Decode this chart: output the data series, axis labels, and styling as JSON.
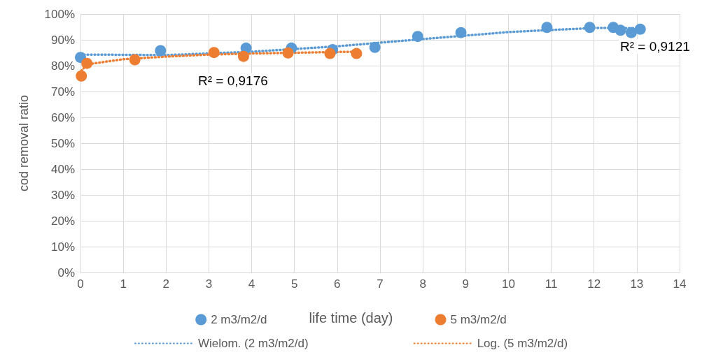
{
  "chart_data": {
    "type": "scatter",
    "xlabel": "life time (day)",
    "ylabel": "cod removal ratio",
    "xlim": [
      0,
      14
    ],
    "xticks": [
      0,
      1,
      2,
      3,
      4,
      5,
      6,
      7,
      8,
      9,
      10,
      11,
      12,
      13,
      14
    ],
    "ylim": [
      0,
      100
    ],
    "yticks": [
      {
        "value": 0,
        "label": "0%"
      },
      {
        "value": 10,
        "label": "10%"
      },
      {
        "value": 20,
        "label": "20%"
      },
      {
        "value": 30,
        "label": "30%"
      },
      {
        "value": 40,
        "label": "40%"
      },
      {
        "value": 50,
        "label": "50%"
      },
      {
        "value": 60,
        "label": "60%"
      },
      {
        "value": 70,
        "label": "70%"
      },
      {
        "value": 80,
        "label": "80%"
      },
      {
        "value": 90,
        "label": "90%"
      },
      {
        "value": 100,
        "label": "100%"
      }
    ],
    "grid": true,
    "legend": "bottom",
    "marker": "circle",
    "series": [
      {
        "name": "2 m3/m2/d",
        "color": "#5b9bd5",
        "x": [
          0,
          1.87,
          3.87,
          4.93,
          5.89,
          6.88,
          7.88,
          8.89,
          10.9,
          11.9,
          12.45,
          12.62,
          12.87,
          13.08
        ],
        "values": [
          83.2,
          85.8,
          86.8,
          86.8,
          86.2,
          87.1,
          91.3,
          92.8,
          94.8,
          94.8,
          94.8,
          93.7,
          92.8,
          94.1
        ]
      },
      {
        "name": "5 m3/m2/d",
        "color": "#ed7d31",
        "x": [
          0.02,
          0.15,
          1.27,
          3.12,
          3.81,
          4.85,
          5.83,
          6.45
        ],
        "values": [
          76.0,
          80.9,
          82.3,
          85.1,
          83.6,
          84.9,
          84.7,
          84.7
        ]
      },
      {
        "name": "Wielom. (2 m3/m2/d)",
        "type": "line",
        "color": "#5b9bd5",
        "marker": "none",
        "line_style": "dotted",
        "x": [
          0,
          2,
          4,
          6,
          8,
          10,
          12,
          13.08
        ],
        "values": [
          84.3,
          84.1,
          85.4,
          87.5,
          90.3,
          93,
          94.6,
          94.5
        ]
      },
      {
        "name": "Log. (5 m3/m2/d)",
        "type": "line",
        "color": "#ed7d31",
        "marker": "none",
        "line_style": "dotted",
        "x": [
          0.02,
          0.15,
          1,
          2,
          3,
          4,
          5,
          6,
          6.45
        ],
        "values": [
          78,
          80.5,
          82.5,
          83.5,
          84.3,
          84.7,
          85,
          85.3,
          85.4
        ]
      }
    ],
    "annotations": [
      "R² = 0,9176",
      "R² = 0,9121"
    ]
  }
}
